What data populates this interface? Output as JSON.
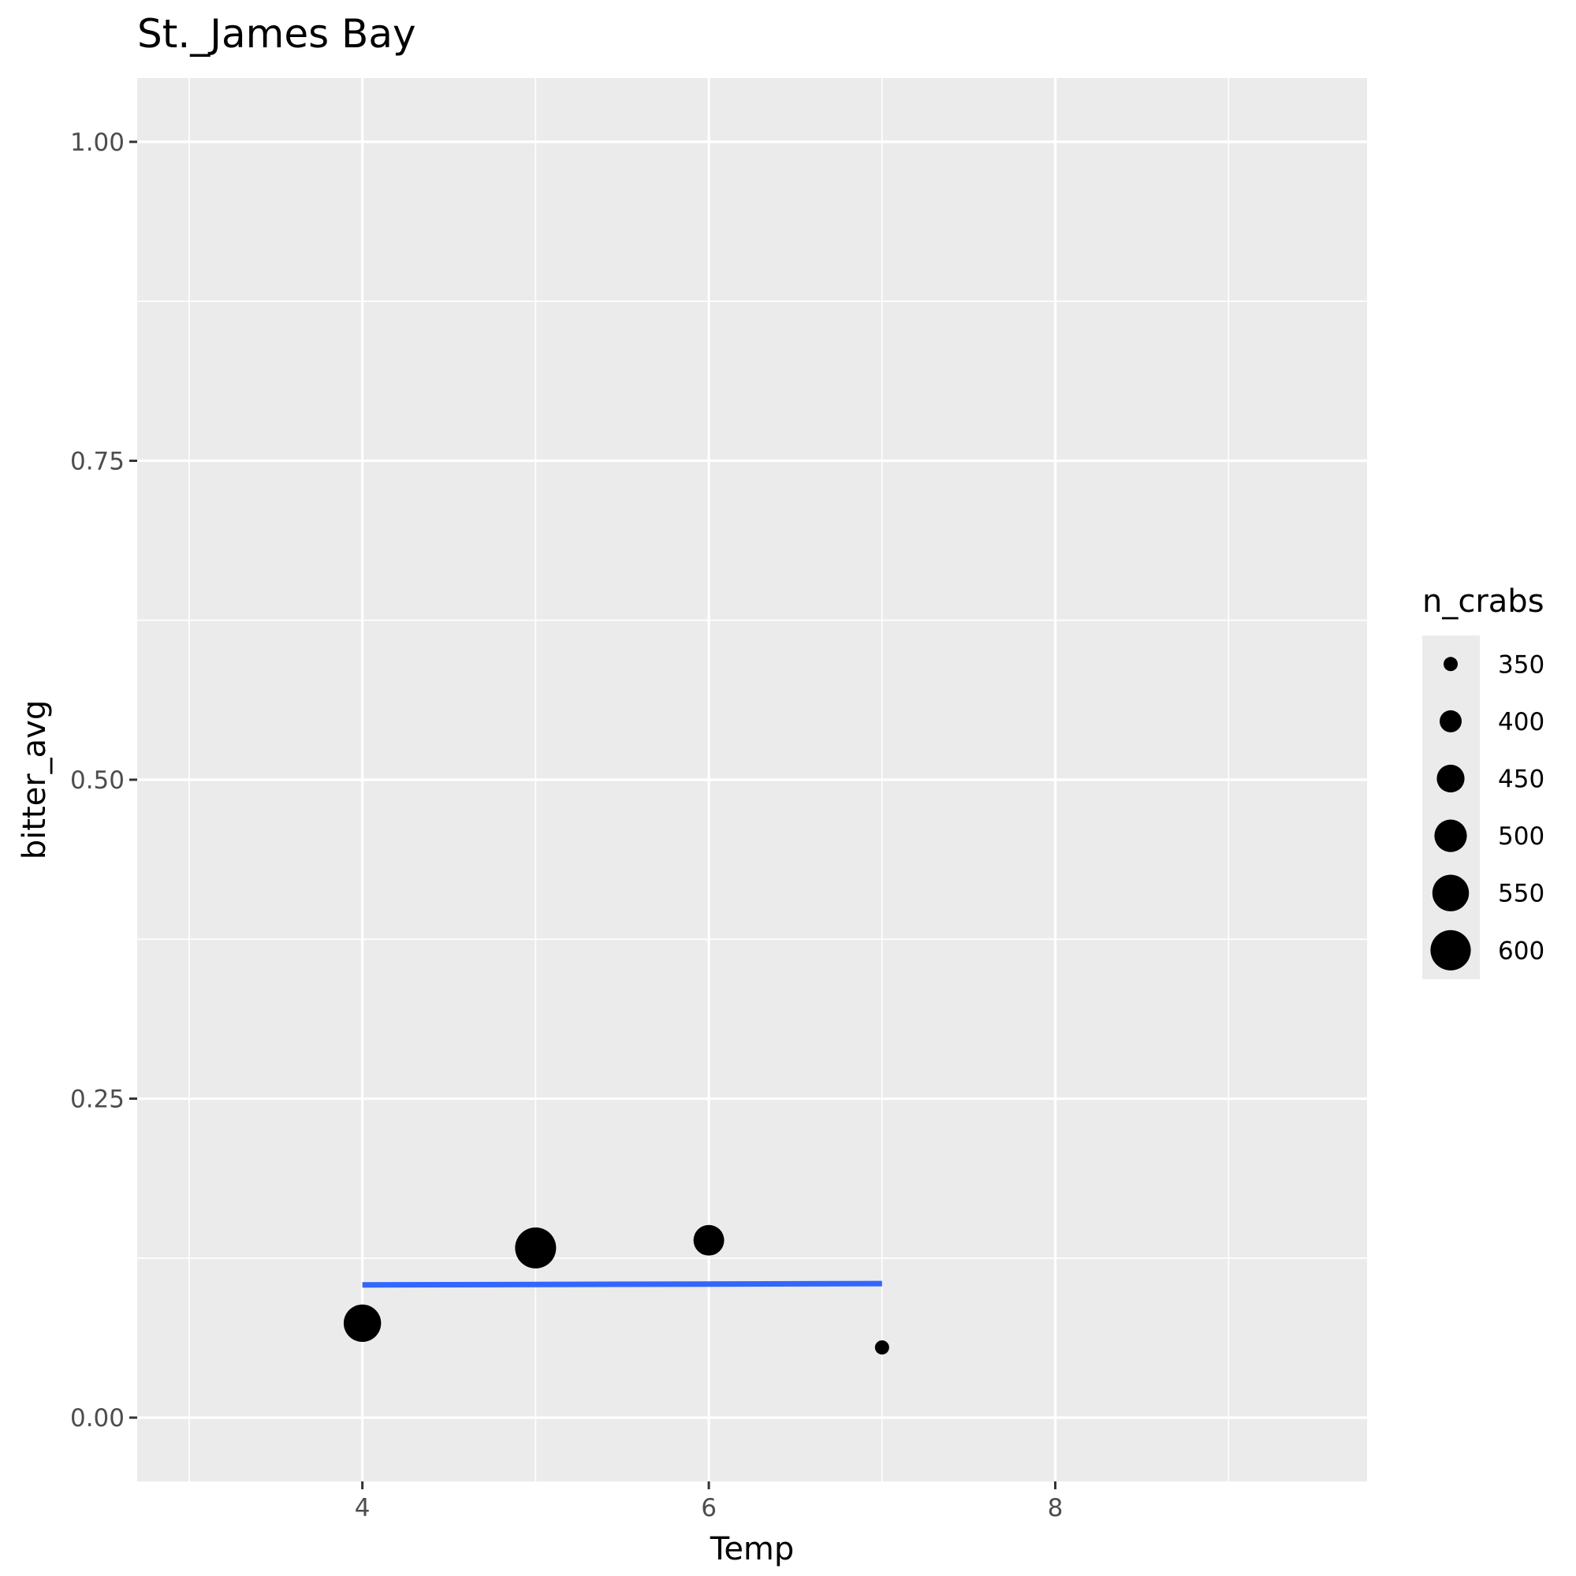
{
  "chart_data": {
    "type": "scatter",
    "title": "St._James Bay",
    "xlabel": "Temp",
    "ylabel": "bitter_avg",
    "xlim": [
      2.7,
      9.8
    ],
    "ylim": [
      -0.05,
      1.05
    ],
    "x_ticks": [
      4,
      6,
      8
    ],
    "x_minor": [
      3,
      5,
      7,
      9
    ],
    "y_ticks": [
      0.0,
      0.25,
      0.5,
      0.75,
      1.0
    ],
    "y_tick_labels": [
      "0.00",
      "0.25",
      "0.50",
      "0.75",
      "1.00"
    ],
    "y_minor": [
      0.125,
      0.375,
      0.625,
      0.875
    ],
    "grid": true,
    "points": [
      {
        "x": 4,
        "y": 0.074,
        "n_crabs": 560
      },
      {
        "x": 5,
        "y": 0.133,
        "n_crabs": 610
      },
      {
        "x": 6,
        "y": 0.139,
        "n_crabs": 480
      },
      {
        "x": 7,
        "y": 0.055,
        "n_crabs": 335
      }
    ],
    "trend_line": {
      "x": [
        4,
        7
      ],
      "y": [
        0.104,
        0.105
      ],
      "color": "#3366ff"
    },
    "size_legend": {
      "title": "n_crabs",
      "position": "right",
      "values": [
        350,
        400,
        450,
        500,
        550,
        600
      ]
    },
    "colors": {
      "panel": "#ebebeb",
      "grid": "#ffffff",
      "points": "#000000",
      "trend": "#3366ff"
    }
  }
}
